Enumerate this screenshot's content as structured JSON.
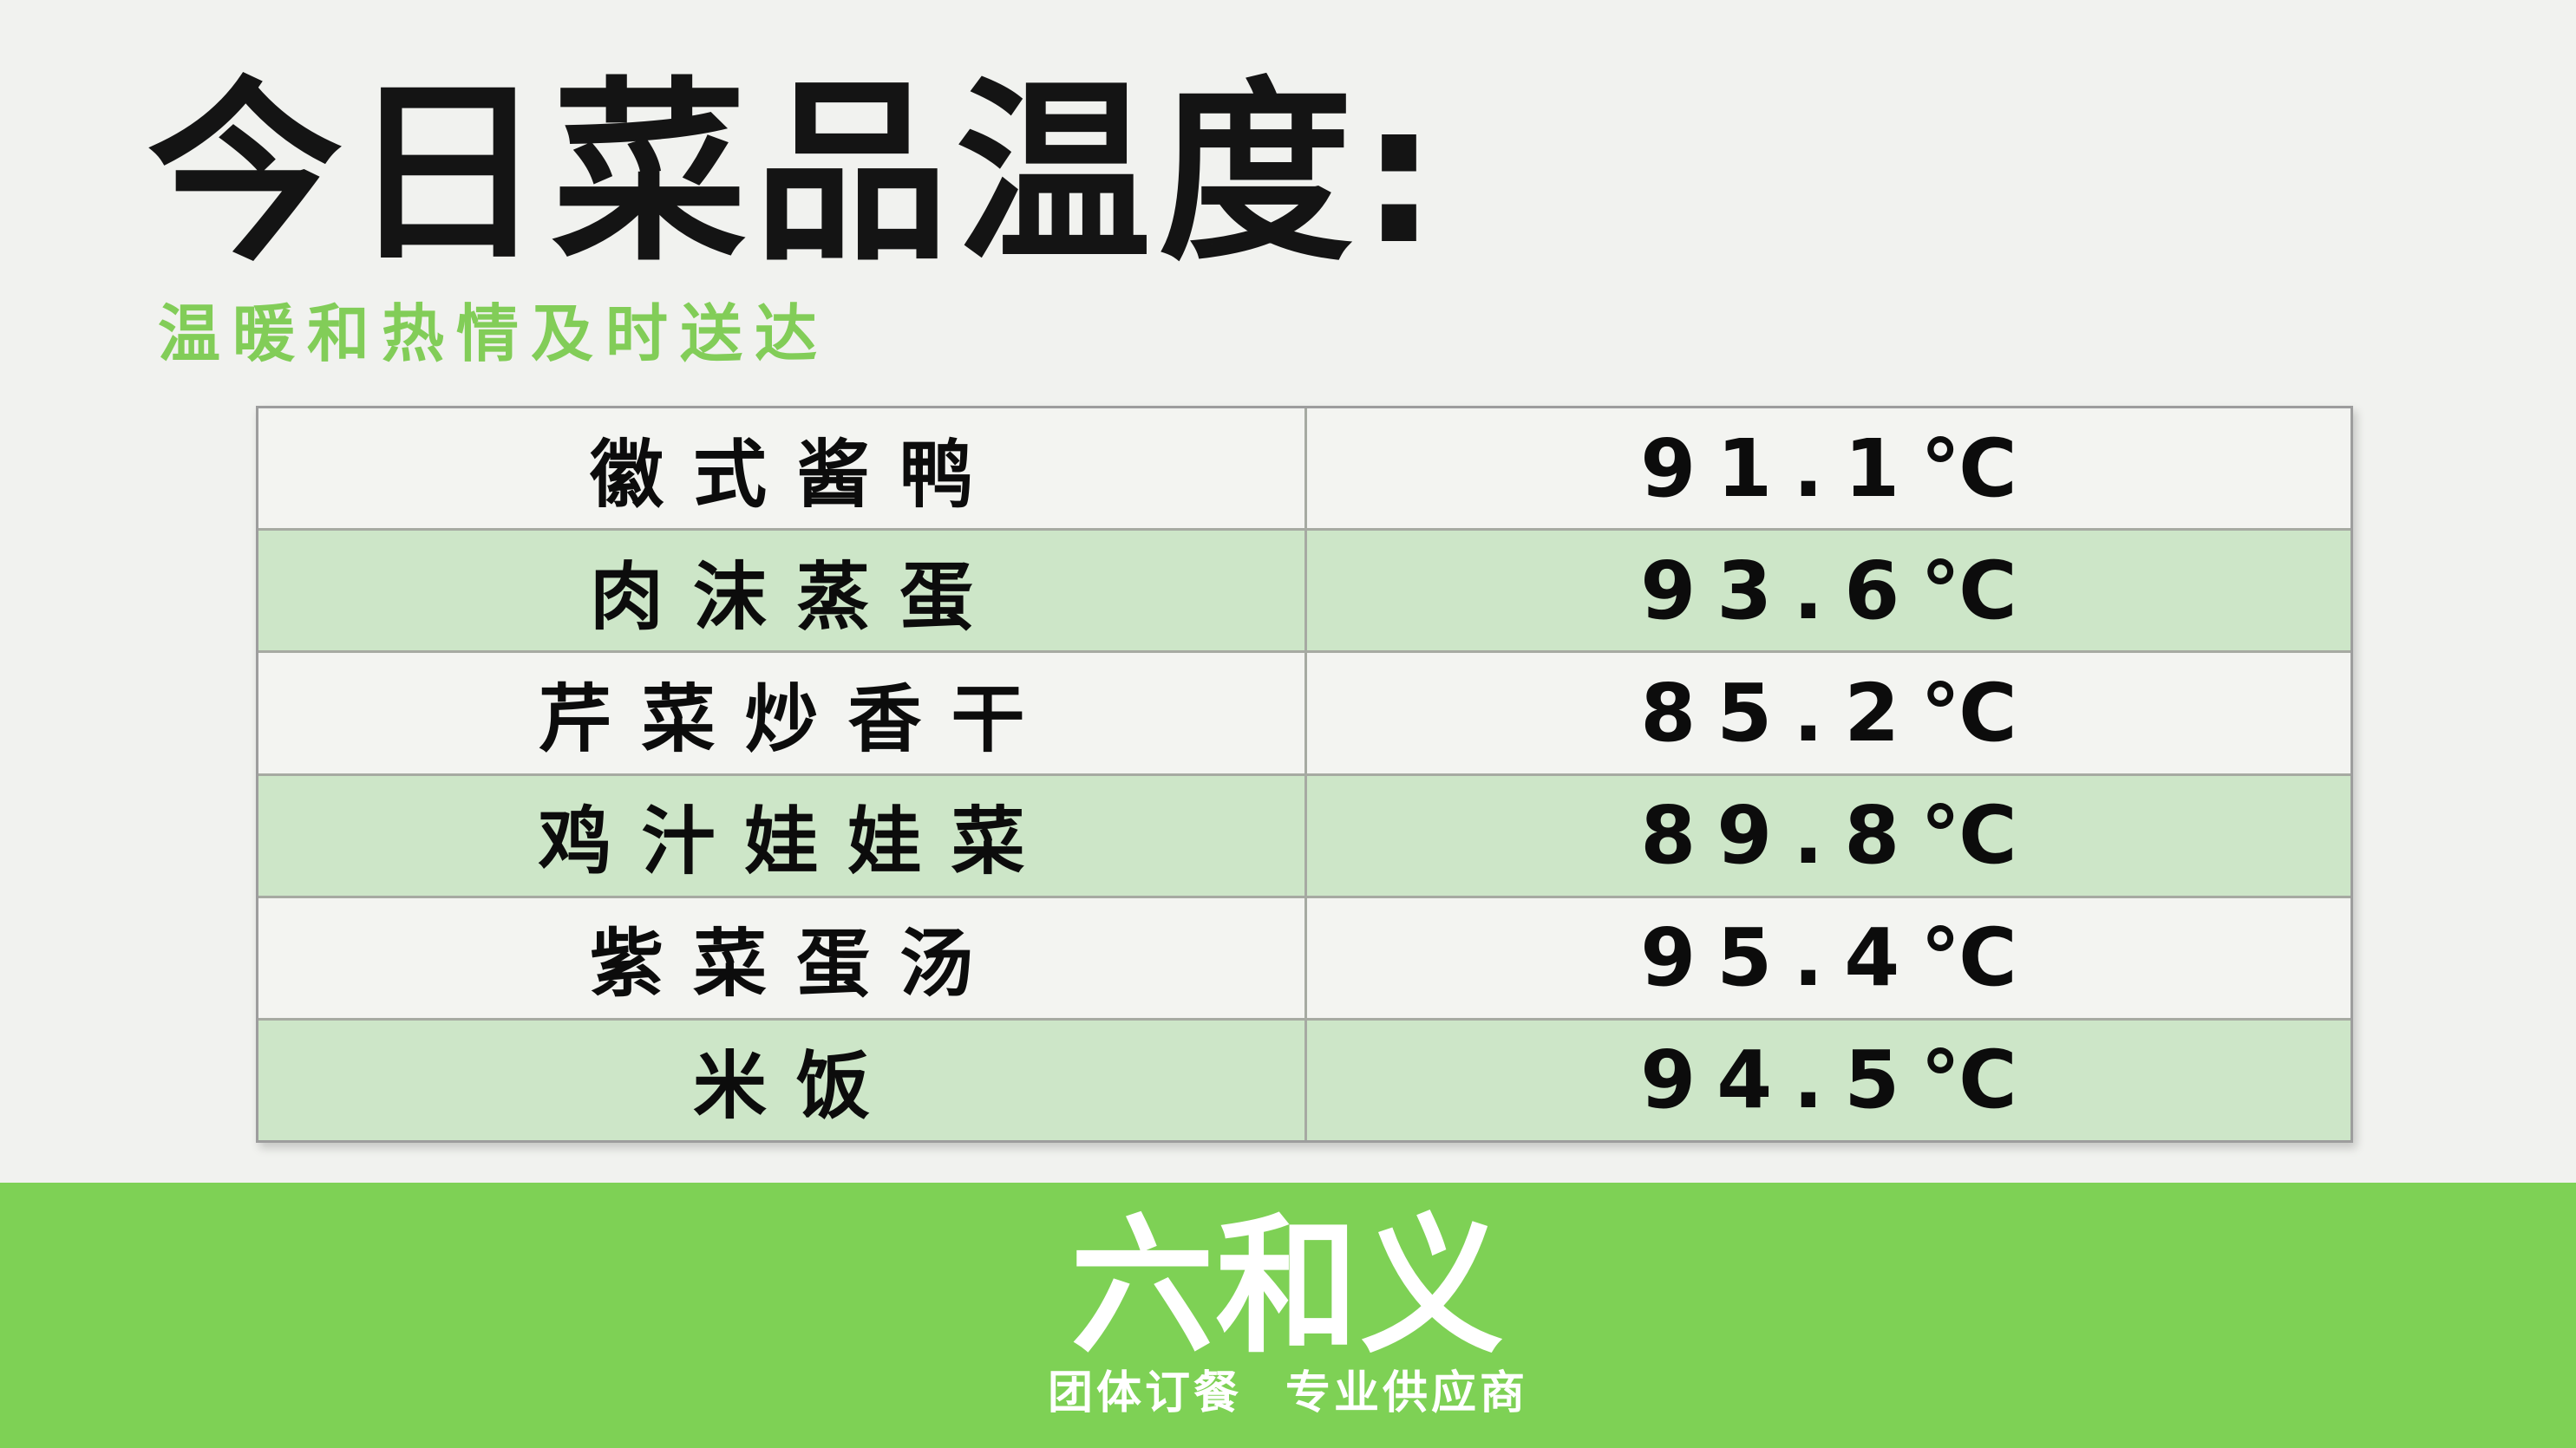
{
  "title": "今日菜品温度:",
  "subtitle": "温暖和热情及时送达",
  "table": {
    "rows": [
      {
        "dish": "徽式酱鸭",
        "temp": "91.1℃"
      },
      {
        "dish": "肉沫蒸蛋",
        "temp": "93.6℃"
      },
      {
        "dish": "芹菜炒香干",
        "temp": "85.2℃"
      },
      {
        "dish": "鸡汁娃娃菜",
        "temp": "89.8℃"
      },
      {
        "dish": "紫菜蛋汤",
        "temp": "95.4℃"
      },
      {
        "dish": "米饭",
        "temp": "94.5℃"
      }
    ]
  },
  "footer": {
    "logo": "六和义",
    "tagline": "团体订餐 专业供应商"
  },
  "colors": {
    "page_bg": "#f1f2ef",
    "title_text": "#141414",
    "subtitle_green": "#82cd58",
    "footer_green": "#7ed155",
    "row_light": "#f3f4f1",
    "row_green": "#cde6c8",
    "grid_line": "#a6aaa2",
    "outer_border": "#9d9d9d",
    "footer_text": "#ffffff"
  }
}
